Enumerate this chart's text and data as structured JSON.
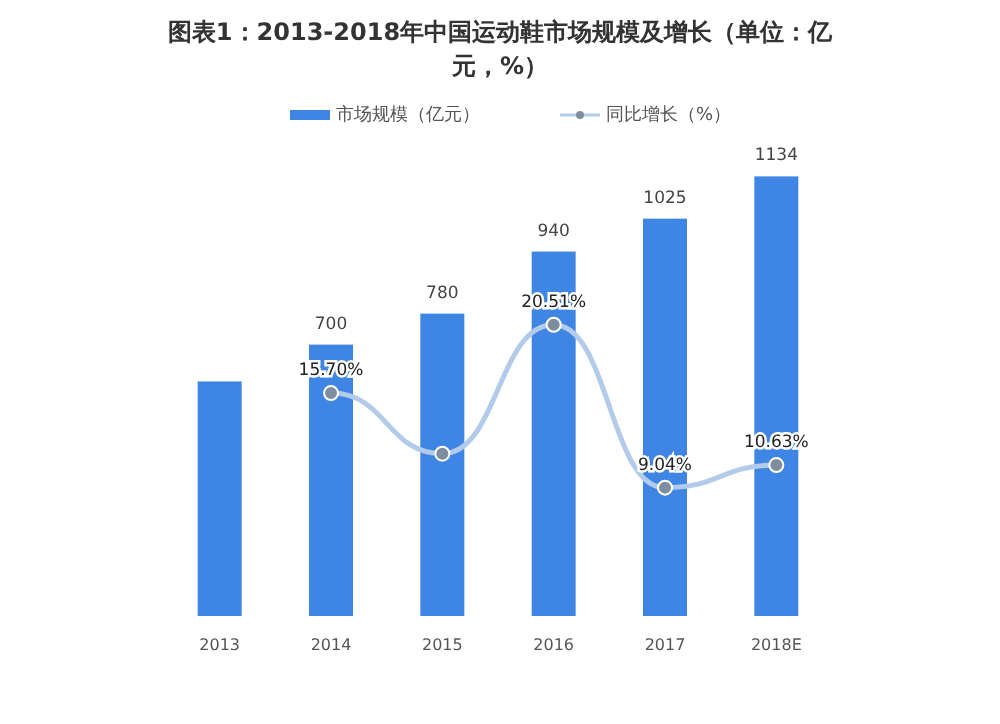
{
  "chart_data": {
    "type": "bar",
    "title": "图表1：2013-2018年中国运动鞋市场规模及增长（单位：亿元，%）",
    "categories": [
      "2013",
      "2014",
      "2015",
      "2016",
      "2017",
      "2018E"
    ],
    "tick_labels": "x",
    "legend": "top",
    "series": [
      {
        "name": "市场规模（亿元）",
        "type": "bar",
        "color": "#3f85e4",
        "values": [
          605,
          700,
          780,
          940,
          1025,
          1134
        ],
        "value_labels": [
          null,
          "700",
          "780",
          "940",
          "1025",
          "1134"
        ]
      },
      {
        "name": "同比增长（%）",
        "type": "line",
        "axis": "y2",
        "color": "#b3cbea",
        "marker": "circle",
        "values": [
          null,
          15.7,
          11.43,
          20.51,
          9.04,
          10.63
        ],
        "value_labels": [
          null,
          "15.70%",
          null,
          "20.51%",
          "9.04%",
          "10.63%"
        ]
      }
    ]
  }
}
